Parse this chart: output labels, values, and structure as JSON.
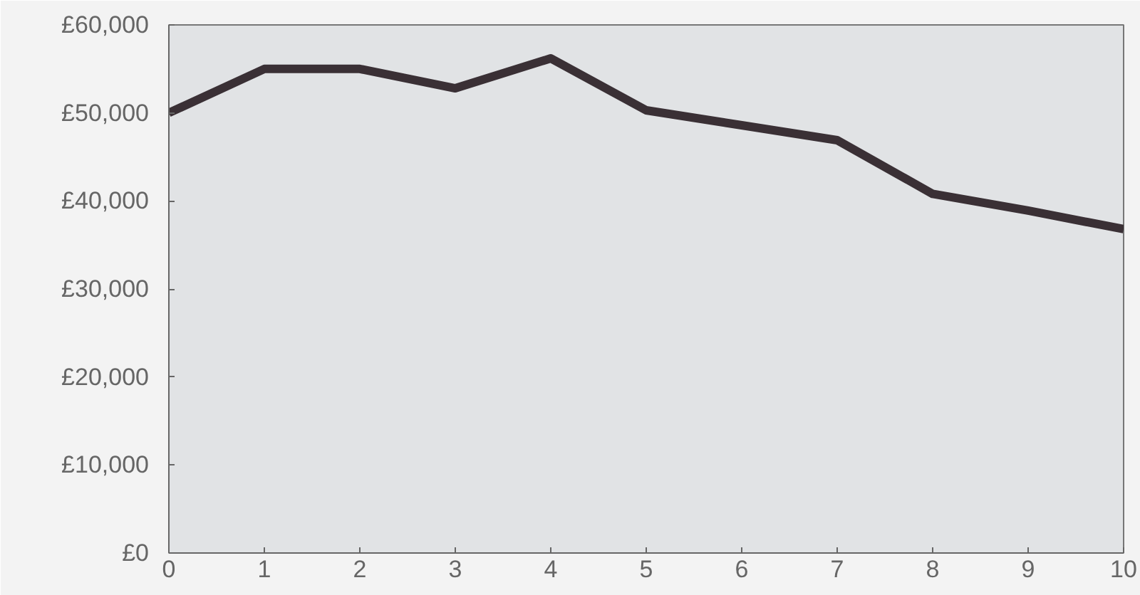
{
  "chart_data": {
    "type": "line",
    "x": [
      0,
      1,
      2,
      3,
      4,
      5,
      6,
      7,
      8,
      9,
      10
    ],
    "series": [
      {
        "color": "#3a3035",
        "values": [
          50000,
          55000,
          55000,
          52800,
          56200,
          50300,
          48600,
          46900,
          40800,
          38900,
          36800
        ]
      }
    ],
    "xlim": [
      0,
      10
    ],
    "xticks": [
      0,
      1,
      2,
      3,
      4,
      5,
      6,
      7,
      8,
      9,
      10
    ],
    "ylim": [
      0,
      60000
    ],
    "yticks": [
      {
        "value": 0,
        "label": "£0"
      },
      {
        "value": 10000,
        "label": "£10,000"
      },
      {
        "value": 20000,
        "label": "£20,000"
      },
      {
        "value": 30000,
        "label": "£30,000"
      },
      {
        "value": 40000,
        "label": "£40,000"
      },
      {
        "value": 50000,
        "label": "£50,000"
      },
      {
        "value": 60000,
        "label": "£60,000"
      }
    ],
    "grid": false,
    "marker": "none",
    "line_style": "solid"
  }
}
